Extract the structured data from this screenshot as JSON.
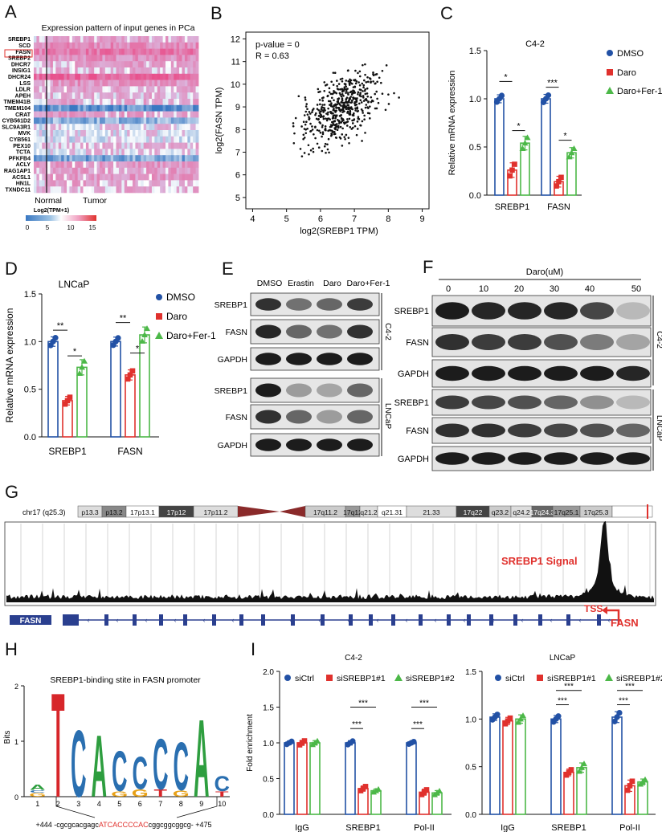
{
  "panels": {
    "A": {
      "label": "A",
      "title": "Expression pattern of input genes in PCa",
      "genes": [
        "SREBP1",
        "SCD",
        "FASN",
        "SREBP2",
        "DHCR7",
        "INSIG1",
        "DHCR24",
        "LSS",
        "LDLR",
        "APEH",
        "TMEM41B",
        "TMEM104",
        "CRAT",
        "CYB561D2",
        "SLC9A3R1",
        "MVK",
        "CYB561",
        "PEX10",
        "TCTA",
        "PFKFB4",
        "ACLY",
        "RAG1AP1",
        "ACSL1",
        "HN1L",
        "TXNDC11"
      ],
      "groups": [
        "Normal",
        "Tumor"
      ],
      "colorbar_title": "Log2(TPM+1)",
      "colorbar_ticks": [
        "0",
        "5",
        "10",
        "15"
      ],
      "colors": {
        "low": "#3a78c2",
        "mid": "#ffffff",
        "high": "#e8508a"
      }
    },
    "B": {
      "label": "B",
      "pvalue_text": "p-value = 0",
      "r_text": "R = 0.63",
      "xlabel": "log2(SREBP1 TPM)",
      "ylabel": "log2(FASN TPM)",
      "xticks": [
        "4",
        "5",
        "6",
        "7",
        "8",
        "9"
      ],
      "yticks": [
        "5",
        "6",
        "7",
        "8",
        "9",
        "10",
        "11",
        "12"
      ]
    },
    "C": {
      "label": "C",
      "title": "C4-2",
      "ylabel": "Relative mRNA expression",
      "yticks": [
        "0.0",
        "0.5",
        "1.0",
        "1.5"
      ],
      "legend": [
        "DMSO",
        "Daro",
        "Daro+Fer-1"
      ],
      "groups": [
        "SREBP1",
        "FASN"
      ],
      "stars": [
        "*",
        "*",
        "***",
        "*"
      ]
    },
    "D": {
      "label": "D",
      "title": "LNCaP",
      "ylabel": "Relative mRNA expression",
      "yticks": [
        "0.0",
        "0.5",
        "1.0",
        "1.5"
      ],
      "legend": [
        "DMSO",
        "Daro",
        "Daro+Fer-1"
      ],
      "groups": [
        "SREBP1",
        "FASN"
      ],
      "stars": [
        "**",
        "*",
        "**",
        "*"
      ]
    },
    "E": {
      "label": "E",
      "lanes": [
        "DMSO",
        "Erastin",
        "Daro",
        "Daro+Fer-1"
      ],
      "rows": [
        "SREBP1",
        "FASN",
        "GAPDH",
        "SREBP1",
        "FASN",
        "GAPDH"
      ],
      "cells": [
        "C4-2",
        "LNCaP"
      ]
    },
    "F": {
      "label": "F",
      "header": "Daro(uM)",
      "doses": [
        "0",
        "10",
        "20",
        "30",
        "40",
        "50"
      ],
      "rows": [
        "SREBP1",
        "FASN",
        "GAPDH",
        "SREBP1",
        "FASN",
        "GAPDH"
      ],
      "cells": [
        "C4-2",
        "LNCaP"
      ]
    },
    "G": {
      "label": "G",
      "chrom": "chr17 (q25.3)",
      "bands": [
        "p13.3",
        "p13.2",
        "17p13.1",
        "17p12",
        "17p11.2",
        "17q11.2",
        "17q12",
        "q21.2",
        "q21.31",
        "21.33",
        "17q22",
        "q23.2",
        "q24.2",
        "17q24.3",
        "17q25.1",
        "17q25.3"
      ],
      "signal_label": "SREBP1 Signal",
      "gene": "FASN",
      "gene_label": "FASN",
      "tss_label": "TSS"
    },
    "H": {
      "label": "H",
      "title": "SREBP1-binding stite in FASN promoter",
      "ylabel": "Bits",
      "yticks": [
        "0",
        "1",
        "2"
      ],
      "positions": [
        "1",
        "2",
        "3",
        "4",
        "5",
        "6",
        "7",
        "8",
        "9",
        "10"
      ],
      "seq_prefix": "+444 -cgcgcacgagc",
      "seq_site": "ATCACCCCAC",
      "seq_suffix": "cggcggcggcg- +475"
    },
    "I": {
      "label": "I",
      "ylabel": "Fold enrichment",
      "yticks": [
        "0.0",
        "0.5",
        "1.0",
        "1.5",
        "2.0"
      ],
      "legend": [
        "siCtrl",
        "siSREBP1#1",
        "siSREBP1#2"
      ],
      "groups": [
        "IgG",
        "SREBP1",
        "Pol-II"
      ],
      "left_title": "C4-2",
      "right_title": "LNCaP",
      "stars": "***"
    }
  },
  "chart_data": [
    {
      "type": "bar",
      "panel": "C",
      "title": "C4-2",
      "categories": [
        "SREBP1",
        "FASN"
      ],
      "ylabel": "Relative mRNA expression",
      "ylim": [
        0,
        1.5
      ],
      "series": [
        {
          "name": "DMSO",
          "values": [
            1.0,
            1.0
          ],
          "color": "#2251a5"
        },
        {
          "name": "Daro",
          "values": [
            0.26,
            0.14
          ],
          "color": "#e0312d"
        },
        {
          "name": "Daro+Fer-1",
          "values": [
            0.54,
            0.44
          ],
          "color": "#4cb848"
        }
      ]
    },
    {
      "type": "bar",
      "panel": "D",
      "title": "LNCaP",
      "categories": [
        "SREBP1",
        "FASN"
      ],
      "ylabel": "Relative mRNA expression",
      "ylim": [
        0,
        1.5
      ],
      "series": [
        {
          "name": "DMSO",
          "values": [
            1.0,
            1.0
          ],
          "color": "#2251a5"
        },
        {
          "name": "Daro",
          "values": [
            0.38,
            0.65
          ],
          "color": "#e0312d"
        },
        {
          "name": "Daro+Fer-1",
          "values": [
            0.73,
            1.07
          ],
          "color": "#4cb848"
        }
      ]
    },
    {
      "type": "bar",
      "panel": "I-left",
      "title": "C4-2",
      "categories": [
        "IgG",
        "SREBP1",
        "Pol-II"
      ],
      "ylabel": "Fold enrichment",
      "ylim": [
        0,
        2.0
      ],
      "series": [
        {
          "name": "siCtrl",
          "values": [
            1.0,
            1.0,
            1.0
          ],
          "color": "#2251a5"
        },
        {
          "name": "siSREBP1#1",
          "values": [
            1.0,
            0.36,
            0.31
          ],
          "color": "#e0312d"
        },
        {
          "name": "siSREBP1#2",
          "values": [
            1.0,
            0.33,
            0.3
          ],
          "color": "#4cb848"
        }
      ]
    },
    {
      "type": "bar",
      "panel": "I-right",
      "title": "LNCaP",
      "categories": [
        "IgG",
        "SREBP1",
        "Pol-II"
      ],
      "ylabel": "Fold enrichment",
      "ylim": [
        0,
        1.5
      ],
      "series": [
        {
          "name": "siCtrl",
          "values": [
            1.02,
            1.0,
            1.02
          ],
          "color": "#2251a5"
        },
        {
          "name": "siSREBP1#1",
          "values": [
            0.98,
            0.44,
            0.3
          ],
          "color": "#e0312d"
        },
        {
          "name": "siSREBP1#2",
          "values": [
            1.0,
            0.49,
            0.34
          ],
          "color": "#4cb848"
        }
      ]
    },
    {
      "type": "scatter",
      "panel": "B",
      "xlabel": "log2(SREBP1 TPM)",
      "ylabel": "log2(FASN TPM)",
      "xlim": [
        3.8,
        9.2
      ],
      "ylim": [
        4.5,
        12.3
      ],
      "annotations": [
        "p-value = 0",
        "R = 0.63"
      ]
    }
  ]
}
